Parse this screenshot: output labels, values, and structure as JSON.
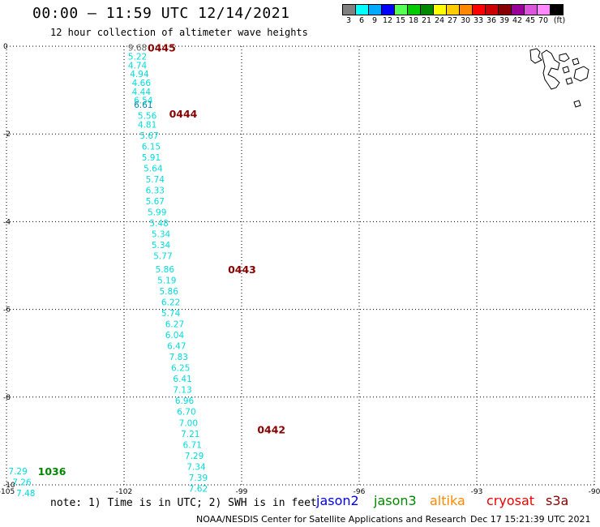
{
  "header": {
    "title": "00:00 – 11:59 UTC 12/14/2021",
    "subtitle": "12 hour collection of altimeter wave heights"
  },
  "legend": {
    "bins": [
      {
        "label": "3",
        "color": "#808080"
      },
      {
        "label": "6",
        "color": "#00ffff"
      },
      {
        "label": "9",
        "color": "#00aaff"
      },
      {
        "label": "12",
        "color": "#0000ff"
      },
      {
        "label": "15",
        "color": "#55ff55"
      },
      {
        "label": "18",
        "color": "#00cc00"
      },
      {
        "label": "21",
        "color": "#008800"
      },
      {
        "label": "24",
        "color": "#ffff00"
      },
      {
        "label": "27",
        "color": "#ffcc00"
      },
      {
        "label": "30",
        "color": "#ff8800"
      },
      {
        "label": "33",
        "color": "#ff0000"
      },
      {
        "label": "36",
        "color": "#cc0000"
      },
      {
        "label": "39",
        "color": "#880000"
      },
      {
        "label": "42",
        "color": "#990099"
      },
      {
        "label": "45",
        "color": "#dd55dd"
      },
      {
        "label": "70",
        "color": "#ff88ff"
      },
      {
        "label": "(ft)",
        "color": "#000000"
      }
    ]
  },
  "map": {
    "lon_labels": [
      "-105",
      "-102",
      "-99",
      "-96",
      "-93",
      "-90"
    ],
    "lat_labels": [
      "0",
      "-2",
      "-4",
      "-6",
      "-8",
      "-10"
    ],
    "lon_range": [
      -105,
      -90
    ],
    "lat_range": [
      -10,
      0
    ],
    "grid": true,
    "time_labels": [
      {
        "text": "0445",
        "lon": -101.4,
        "lat": -0.05,
        "color": "#880000"
      },
      {
        "text": "0444",
        "lon": -100.85,
        "lat": -1.55,
        "color": "#880000"
      },
      {
        "text": "0443",
        "lon": -99.35,
        "lat": -5.1,
        "color": "#880000"
      },
      {
        "text": "0442",
        "lon": -98.6,
        "lat": -8.75,
        "color": "#880000"
      },
      {
        "text": "1036",
        "lon": -104.2,
        "lat": -9.7,
        "color": "#008800"
      }
    ],
    "tracks": [
      {
        "satellite": "jason3-pass-1",
        "color": "#00dddd",
        "points": [
          {
            "lon": -101.9,
            "lat": -0.05,
            "v": "9.68",
            "c": "#606060"
          },
          {
            "lon": -101.9,
            "lat": -0.25,
            "v": "5.22"
          },
          {
            "lon": -101.9,
            "lat": -0.45,
            "v": "4.74"
          },
          {
            "lon": -101.85,
            "lat": -0.65,
            "v": "4.94"
          },
          {
            "lon": -101.8,
            "lat": -0.85,
            "v": "4.66"
          },
          {
            "lon": -101.8,
            "lat": -1.05,
            "v": "4.44"
          },
          {
            "lon": -101.75,
            "lat": -1.25,
            "v": "6.54"
          },
          {
            "lon": -101.75,
            "lat": -1.35,
            "v": "6.61",
            "c": "#0088aa"
          },
          {
            "lon": -101.65,
            "lat": -1.6,
            "v": "5.56"
          },
          {
            "lon": -101.65,
            "lat": -1.8,
            "v": "4.81"
          },
          {
            "lon": -101.6,
            "lat": -2.05,
            "v": "5.67"
          },
          {
            "lon": -101.55,
            "lat": -2.3,
            "v": "6.15"
          },
          {
            "lon": -101.55,
            "lat": -2.55,
            "v": "5.91"
          },
          {
            "lon": -101.5,
            "lat": -2.8,
            "v": "5.64"
          },
          {
            "lon": -101.45,
            "lat": -3.05,
            "v": "5.74"
          },
          {
            "lon": -101.45,
            "lat": -3.3,
            "v": "6.33"
          },
          {
            "lon": -101.45,
            "lat": -3.55,
            "v": "5.67"
          },
          {
            "lon": -101.4,
            "lat": -3.8,
            "v": "5.99"
          },
          {
            "lon": -101.35,
            "lat": -4.05,
            "v": "5.48"
          },
          {
            "lon": -101.3,
            "lat": -4.3,
            "v": "5.34"
          },
          {
            "lon": -101.3,
            "lat": -4.55,
            "v": "5.34"
          },
          {
            "lon": -101.25,
            "lat": -4.8,
            "v": "5.77"
          },
          {
            "lon": -101.2,
            "lat": -5.1,
            "v": "5.86"
          },
          {
            "lon": -101.15,
            "lat": -5.35,
            "v": "5.19"
          },
          {
            "lon": -101.1,
            "lat": -5.6,
            "v": "5.86"
          },
          {
            "lon": -101.05,
            "lat": -5.85,
            "v": "6.22"
          },
          {
            "lon": -101.05,
            "lat": -6.1,
            "v": "5.74"
          },
          {
            "lon": -100.95,
            "lat": -6.35,
            "v": "6.27"
          },
          {
            "lon": -100.95,
            "lat": -6.6,
            "v": "6.04"
          },
          {
            "lon": -100.9,
            "lat": -6.85,
            "v": "6.47"
          },
          {
            "lon": -100.85,
            "lat": -7.1,
            "v": "7.83"
          },
          {
            "lon": -100.8,
            "lat": -7.35,
            "v": "6.25"
          },
          {
            "lon": -100.75,
            "lat": -7.6,
            "v": "6.41"
          },
          {
            "lon": -100.75,
            "lat": -7.85,
            "v": "7.13"
          },
          {
            "lon": -100.7,
            "lat": -8.1,
            "v": "6.96"
          },
          {
            "lon": -100.65,
            "lat": -8.35,
            "v": "6.70"
          },
          {
            "lon": -100.6,
            "lat": -8.6,
            "v": "7.00"
          },
          {
            "lon": -100.55,
            "lat": -8.85,
            "v": "7.21"
          },
          {
            "lon": -100.5,
            "lat": -9.1,
            "v": "6.71"
          },
          {
            "lon": -100.45,
            "lat": -9.35,
            "v": "7.29"
          },
          {
            "lon": -100.4,
            "lat": -9.6,
            "v": "7.34"
          },
          {
            "lon": -100.35,
            "lat": -9.85,
            "v": "7.39"
          },
          {
            "lon": -100.35,
            "lat": -10.1,
            "v": "7.62"
          }
        ]
      },
      {
        "satellite": "jason3-pass-2",
        "color": "#00dddd",
        "points": [
          {
            "lon": -104.95,
            "lat": -9.7,
            "v": "7.29"
          },
          {
            "lon": -104.85,
            "lat": -9.95,
            "v": "7.26"
          },
          {
            "lon": -104.75,
            "lat": -10.2,
            "v": "7.48"
          }
        ]
      }
    ]
  },
  "footer": {
    "note": "note: 1) Time is in UTC; 2) SWH is in feet",
    "satellites": [
      {
        "label": "jason2",
        "color": "#0000ee"
      },
      {
        "label": "jason3",
        "color": "#008800"
      },
      {
        "label": "altika",
        "color": "#ff8800"
      },
      {
        "label": "cryosat",
        "color": "#ee0000"
      },
      {
        "label": "s3a",
        "color": "#880000"
      }
    ],
    "credit": "NOAA/NESDIS Center for Satellite Applications and Research",
    "timestamp": "Dec 17 15:21:39 UTC 2021"
  }
}
